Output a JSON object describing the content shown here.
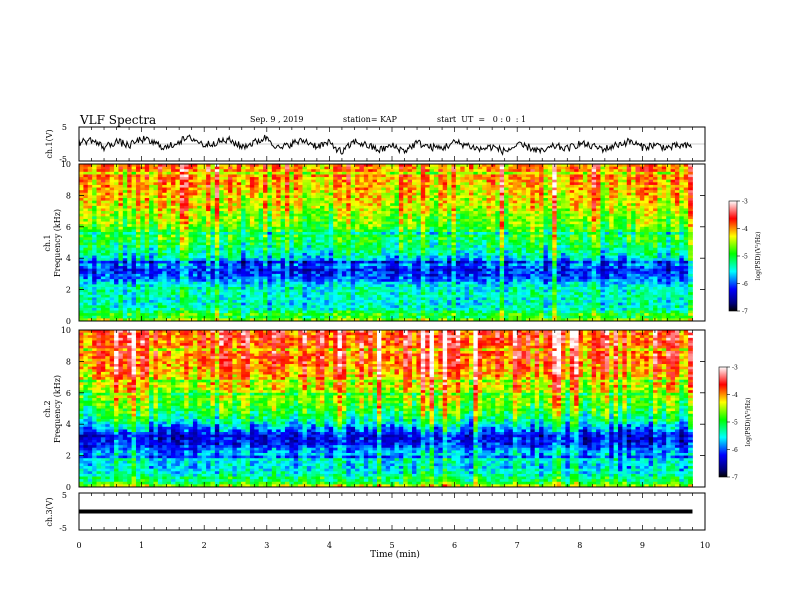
{
  "header": {
    "title": "VLF Spectra",
    "date": "Sep. 9 , 2019",
    "station": "station= KAP",
    "start": "start  UT  =   0 : 0  : 1"
  },
  "chart_data": [
    {
      "type": "line",
      "panel": "ch1-waveform",
      "ylabel": "ch.1(V)",
      "ylim": [
        -5,
        5
      ],
      "yticks": [
        "5",
        "-5"
      ],
      "x": [
        0,
        0.2,
        0.4,
        0.6,
        0.8,
        1.0,
        1.2,
        1.4,
        1.6,
        1.8,
        2.0,
        2.2,
        2.4,
        2.6,
        2.8,
        3.0,
        3.2,
        3.4,
        3.6,
        3.8,
        4.0,
        4.2,
        4.4,
        4.6,
        4.8,
        5.0,
        5.2,
        5.4,
        5.6,
        5.8,
        6.0,
        6.2,
        6.4,
        6.6,
        6.8,
        7.0,
        7.2,
        7.4,
        7.6,
        7.8,
        8.0,
        8.2,
        8.4,
        8.6,
        8.8,
        9.0,
        9.2,
        9.4,
        9.6,
        9.8
      ],
      "values": [
        0.5,
        1.2,
        -1.0,
        0.8,
        -0.5,
        1.5,
        0.3,
        -1.2,
        0.9,
        1.8,
        -0.3,
        0.6,
        1.1,
        -0.8,
        0.4,
        2.0,
        -1.5,
        0.2,
        1.0,
        -0.6,
        0.3,
        -2.5,
        0.8,
        -0.4,
        -1.8,
        -0.5,
        -2.0,
        0.4,
        -0.9,
        -1.2,
        0.5,
        -0.3,
        -1.6,
        -0.8,
        -2.2,
        -0.4,
        -1.0,
        -2.3,
        -0.6,
        -1.4,
        0.2,
        -0.7,
        -1.5,
        -0.2,
        0.8,
        -0.9,
        -0.3,
        -1.1,
        -0.5,
        -0.8
      ]
    },
    {
      "type": "heatmap",
      "panel": "ch1-spectrogram",
      "ylabel": "ch.1\nFrequency (kHz)",
      "ylim": [
        0,
        10
      ],
      "yticks": [
        "0",
        "2",
        "4",
        "6",
        "8",
        "10"
      ],
      "xlim": [
        0,
        10
      ],
      "frequency_khz": [
        0.25,
        0.75,
        1.25,
        1.75,
        2.25,
        2.75,
        3.25,
        3.75,
        4.25,
        4.75,
        5.25,
        5.75,
        6.25,
        6.75,
        7.25,
        7.75,
        8.25,
        8.75,
        9.25,
        9.75
      ],
      "log_psd": [
        -4.6,
        -5.4,
        -5.5,
        -5.4,
        -5.5,
        -6.0,
        -6.2,
        -5.8,
        -5.4,
        -5.2,
        -5.0,
        -4.9,
        -4.7,
        -4.6,
        -4.4,
        -4.3,
        -4.2,
        -4.1,
        -4.0,
        -4.0
      ],
      "colorbar": {
        "label": "log(PSD)(V²/Hz)",
        "range": [
          -7,
          -3
        ],
        "ticks": [
          "-3",
          "-4",
          "-5",
          "-6",
          "-7"
        ]
      }
    },
    {
      "type": "heatmap",
      "panel": "ch2-spectrogram",
      "ylabel": "ch.2\nFrequency (kHz)",
      "ylim": [
        0,
        10
      ],
      "yticks": [
        "0",
        "2",
        "4",
        "6",
        "8",
        "10"
      ],
      "xlim": [
        0,
        10
      ],
      "frequency_khz": [
        0.25,
        0.75,
        1.25,
        1.75,
        2.25,
        2.75,
        3.25,
        3.75,
        4.25,
        4.75,
        5.25,
        5.75,
        6.25,
        6.75,
        7.25,
        7.75,
        8.25,
        8.75,
        9.25,
        9.75
      ],
      "log_psd": [
        -4.5,
        -5.4,
        -5.6,
        -5.5,
        -5.8,
        -6.2,
        -6.3,
        -5.8,
        -5.3,
        -5.0,
        -4.8,
        -4.6,
        -4.4,
        -4.2,
        -4.0,
        -3.9,
        -3.8,
        -3.8,
        -3.7,
        -3.7
      ],
      "colorbar": {
        "label": "log(PSD)(V²/Hz)",
        "range": [
          -7,
          -3
        ],
        "ticks": [
          "-3",
          "-4",
          "-5",
          "-6",
          "-7"
        ]
      }
    },
    {
      "type": "line",
      "panel": "ch3-waveform",
      "ylabel": "ch.3(V)",
      "ylim": [
        -5,
        5
      ],
      "yticks": [
        "5",
        "-5"
      ],
      "x": [
        0,
        9.8
      ],
      "values": [
        0,
        0
      ]
    }
  ],
  "xaxis": {
    "label": "Time (min)",
    "xlim": [
      0,
      10
    ],
    "ticks": [
      "0",
      "1",
      "2",
      "3",
      "4",
      "5",
      "6",
      "7",
      "8",
      "9",
      "10"
    ]
  }
}
